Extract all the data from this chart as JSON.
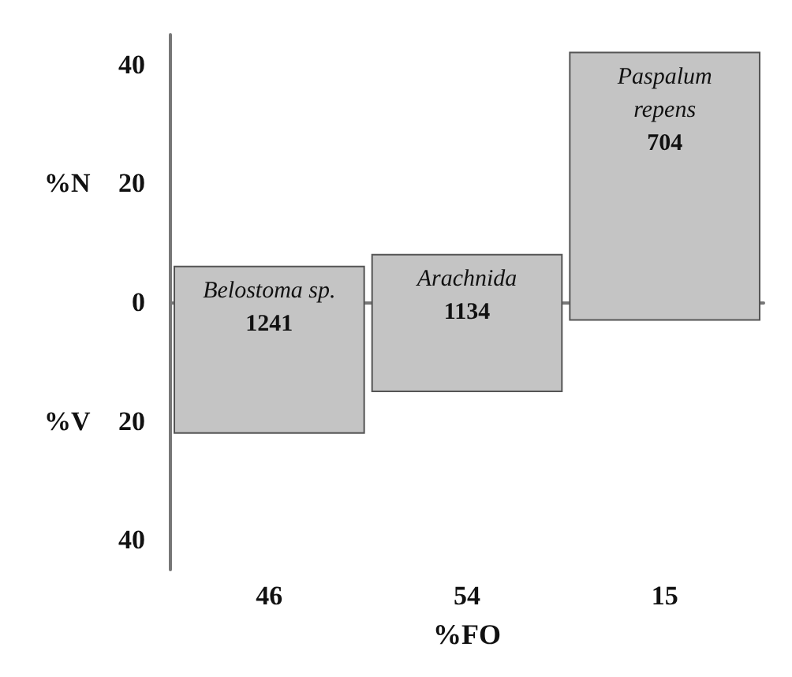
{
  "chart_data": {
    "type": "bar",
    "xlabel": "%FO",
    "ylabel": "%N",
    "categories": [
      "46",
      "54",
      "15"
    ],
    "series": [
      {
        "color": "#c4c4c4",
        "values": [
          28,
          23,
          45
        ],
        "base": [
          -22,
          -15,
          -3
        ]
      }
    ],
    "ref_lines": [
      {
        "axis": "y",
        "value": 0,
        "color": "#777777"
      }
    ],
    "ylim": [
      -45,
      45
    ],
    "yticks": [
      {
        "value": -40,
        "label": "40"
      },
      {
        "value": -20,
        "label": "20"
      },
      0,
      20,
      40
    ],
    "grid": false,
    "annotations": [
      "Belostoma sp.",
      "1241",
      "Arachnida",
      "1134",
      "Paspalum",
      "repens",
      "704",
      "%V"
    ]
  }
}
